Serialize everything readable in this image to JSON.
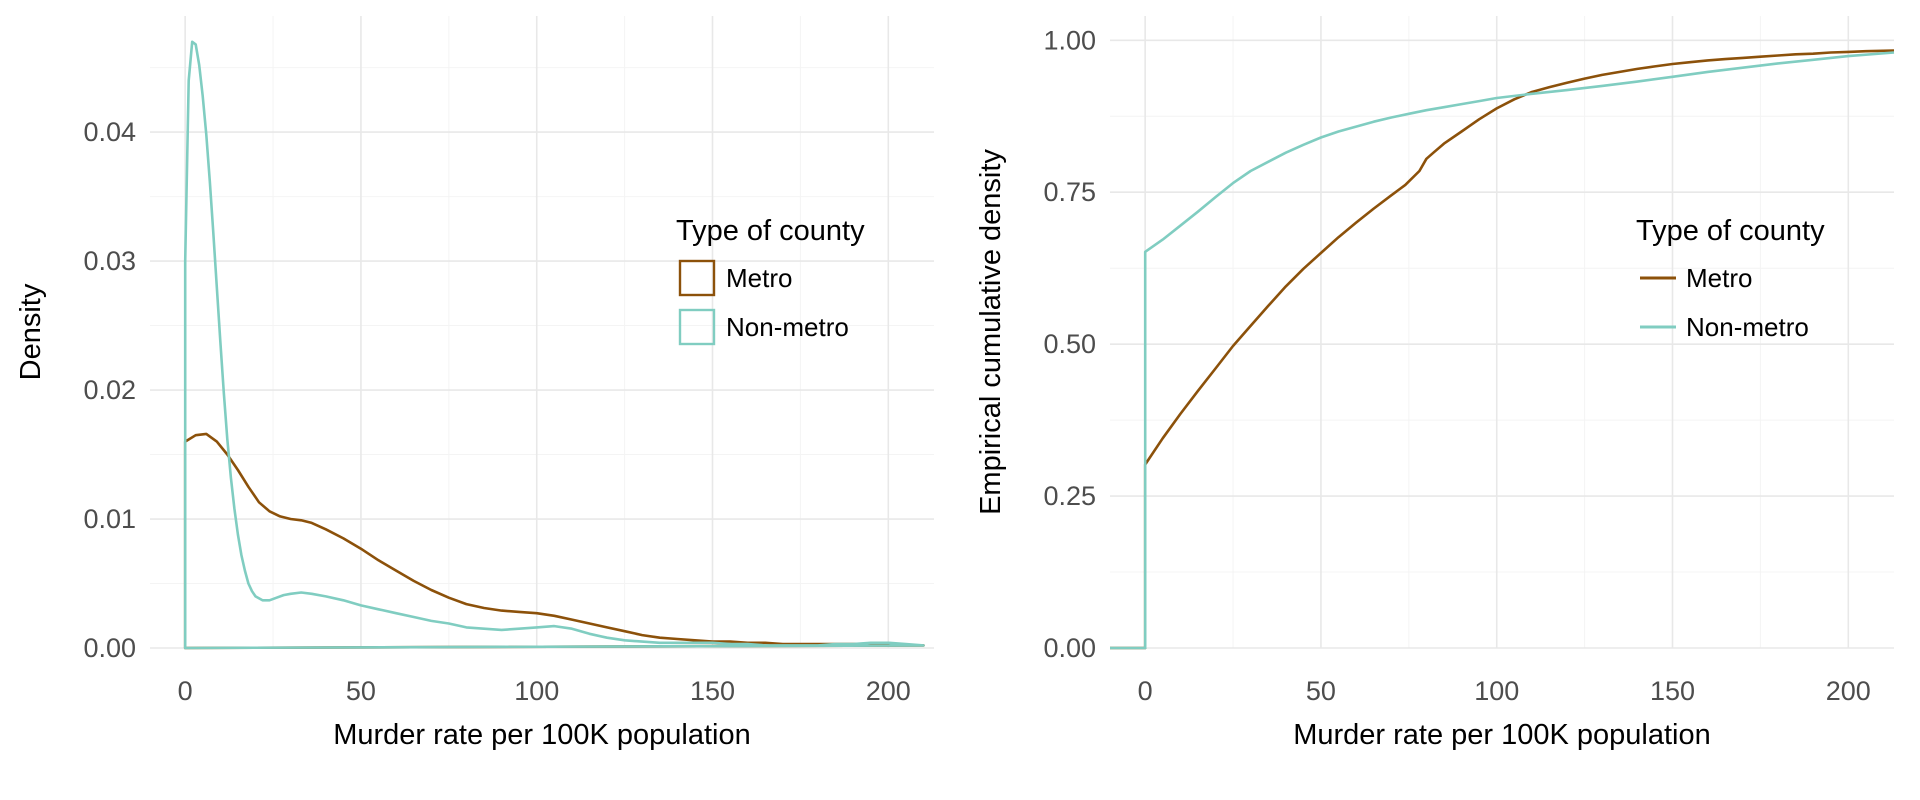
{
  "figure": {
    "background": "#ffffff"
  },
  "colors": {
    "metro": "#8c510a",
    "nonmetro": "#80cdc1",
    "grid_major": "#e8e8e8",
    "grid_minor": "#f4f4f4",
    "tick_text": "#4d4d4d",
    "title_text": "#000000"
  },
  "chart_data": [
    {
      "type": "line",
      "title": "",
      "xlabel": "Murder rate per 100K population",
      "ylabel": "Density",
      "xlim": [
        -10,
        213
      ],
      "ylim": [
        0,
        0.049
      ],
      "grid": true,
      "xticks": [
        {
          "v": 0,
          "label": "0"
        },
        {
          "v": 50,
          "label": "50"
        },
        {
          "v": 100,
          "label": "100"
        },
        {
          "v": 150,
          "label": "150"
        },
        {
          "v": 200,
          "label": "200"
        }
      ],
      "yticks": [
        {
          "v": 0,
          "label": "0.00"
        },
        {
          "v": 0.01,
          "label": "0.01"
        },
        {
          "v": 0.02,
          "label": "0.02"
        },
        {
          "v": 0.03,
          "label": "0.03"
        },
        {
          "v": 0.04,
          "label": "0.04"
        }
      ],
      "legend": {
        "title": "Type of county",
        "position": "inside-right",
        "key": "box",
        "entries": [
          {
            "label": "Metro",
            "color_ref": "metro"
          },
          {
            "label": "Non-metro",
            "color_ref": "nonmetro"
          }
        ]
      },
      "series": [
        {
          "name": "Metro",
          "color_ref": "metro",
          "closed": true,
          "x": [
            0,
            0,
            3,
            6,
            9,
            12,
            15,
            18,
            21,
            24,
            27,
            30,
            33,
            36,
            40,
            45,
            50,
            55,
            60,
            65,
            70,
            75,
            80,
            85,
            90,
            95,
            100,
            105,
            110,
            115,
            120,
            125,
            130,
            135,
            140,
            145,
            150,
            155,
            160,
            165,
            170,
            175,
            180,
            185,
            190,
            195,
            200,
            205,
            210
          ],
          "y": [
            0,
            0.016,
            0.0165,
            0.0166,
            0.016,
            0.015,
            0.0138,
            0.0125,
            0.0113,
            0.0106,
            0.0102,
            0.01,
            0.0099,
            0.0097,
            0.0092,
            0.0085,
            0.0077,
            0.0068,
            0.006,
            0.0052,
            0.0045,
            0.0039,
            0.0034,
            0.0031,
            0.0029,
            0.0028,
            0.0027,
            0.0025,
            0.0022,
            0.0019,
            0.0016,
            0.0013,
            0.001,
            0.0008,
            0.0007,
            0.0006,
            0.0005,
            0.0005,
            0.0004,
            0.0004,
            0.0003,
            0.0003,
            0.0003,
            0.0003,
            0.0003,
            0.0003,
            0.0003,
            0.0002,
            0.0002
          ]
        },
        {
          "name": "Non-metro",
          "color_ref": "nonmetro",
          "closed": true,
          "x": [
            0,
            0,
            1,
            2,
            3,
            4,
            5,
            6,
            7,
            8,
            9,
            10,
            11,
            12,
            13,
            14,
            15,
            16,
            17,
            18,
            19,
            20,
            22,
            24,
            26,
            28,
            30,
            33,
            36,
            40,
            45,
            50,
            55,
            60,
            65,
            70,
            75,
            80,
            85,
            90,
            95,
            100,
            105,
            110,
            115,
            120,
            125,
            130,
            135,
            140,
            145,
            150,
            155,
            160,
            165,
            170,
            175,
            180,
            185,
            190,
            195,
            200,
            205,
            210
          ],
          "y": [
            0,
            0.03,
            0.044,
            0.047,
            0.0468,
            0.0452,
            0.0428,
            0.0398,
            0.0362,
            0.0322,
            0.028,
            0.0238,
            0.0198,
            0.0162,
            0.0132,
            0.0108,
            0.0088,
            0.0072,
            0.006,
            0.005,
            0.0044,
            0.004,
            0.0037,
            0.0037,
            0.0039,
            0.0041,
            0.0042,
            0.0043,
            0.0042,
            0.004,
            0.0037,
            0.0033,
            0.003,
            0.0027,
            0.0024,
            0.0021,
            0.0019,
            0.0016,
            0.0015,
            0.0014,
            0.0015,
            0.0016,
            0.0017,
            0.0015,
            0.0011,
            0.0008,
            0.0006,
            0.0005,
            0.0004,
            0.0004,
            0.0004,
            0.0004,
            0.0003,
            0.0003,
            0.0002,
            0.0002,
            0.0002,
            0.0002,
            0.0003,
            0.0003,
            0.0004,
            0.0004,
            0.0003,
            0.0002
          ]
        }
      ]
    },
    {
      "type": "line",
      "title": "",
      "xlabel": "Murder rate per 100K population",
      "ylabel": "Empirical cumulative density",
      "xlim": [
        -10,
        213
      ],
      "ylim": [
        0,
        1.04
      ],
      "grid": true,
      "xticks": [
        {
          "v": 0,
          "label": "0"
        },
        {
          "v": 50,
          "label": "50"
        },
        {
          "v": 100,
          "label": "100"
        },
        {
          "v": 150,
          "label": "150"
        },
        {
          "v": 200,
          "label": "200"
        }
      ],
      "yticks": [
        {
          "v": 0,
          "label": "0.00"
        },
        {
          "v": 0.25,
          "label": "0.25"
        },
        {
          "v": 0.5,
          "label": "0.50"
        },
        {
          "v": 0.75,
          "label": "0.75"
        },
        {
          "v": 1,
          "label": "1.00"
        }
      ],
      "legend": {
        "title": "Type of county",
        "position": "inside-right",
        "key": "line",
        "entries": [
          {
            "label": "Metro",
            "color_ref": "metro"
          },
          {
            "label": "Non-metro",
            "color_ref": "nonmetro"
          }
        ]
      },
      "series": [
        {
          "name": "Metro",
          "color_ref": "metro",
          "closed": false,
          "x": [
            -10,
            0,
            0,
            5,
            10,
            15,
            20,
            25,
            30,
            35,
            40,
            45,
            50,
            55,
            60,
            65,
            70,
            74,
            78,
            80,
            82,
            85,
            90,
            95,
            100,
            105,
            110,
            115,
            120,
            125,
            130,
            135,
            140,
            145,
            150,
            155,
            160,
            165,
            170,
            175,
            180,
            185,
            190,
            195,
            200,
            205,
            213
          ],
          "y": [
            0,
            0,
            0.302,
            0.345,
            0.385,
            0.423,
            0.46,
            0.497,
            0.53,
            0.563,
            0.595,
            0.624,
            0.65,
            0.676,
            0.7,
            0.723,
            0.745,
            0.762,
            0.785,
            0.805,
            0.815,
            0.83,
            0.85,
            0.87,
            0.888,
            0.903,
            0.915,
            0.923,
            0.93,
            0.937,
            0.943,
            0.948,
            0.953,
            0.957,
            0.961,
            0.964,
            0.967,
            0.969,
            0.971,
            0.973,
            0.975,
            0.977,
            0.978,
            0.98,
            0.981,
            0.982,
            0.983
          ]
        },
        {
          "name": "Non-metro",
          "color_ref": "nonmetro",
          "closed": false,
          "x": [
            -10,
            0,
            0,
            5,
            10,
            15,
            20,
            25,
            30,
            35,
            40,
            45,
            50,
            55,
            60,
            65,
            70,
            75,
            80,
            85,
            90,
            95,
            100,
            110,
            120,
            130,
            140,
            150,
            160,
            170,
            180,
            190,
            200,
            213
          ],
          "y": [
            0,
            0,
            0.652,
            0.672,
            0.695,
            0.718,
            0.742,
            0.765,
            0.785,
            0.8,
            0.815,
            0.828,
            0.84,
            0.85,
            0.858,
            0.866,
            0.873,
            0.879,
            0.885,
            0.89,
            0.895,
            0.9,
            0.905,
            0.912,
            0.918,
            0.925,
            0.932,
            0.94,
            0.948,
            0.955,
            0.962,
            0.968,
            0.974,
            0.98
          ]
        }
      ]
    }
  ]
}
